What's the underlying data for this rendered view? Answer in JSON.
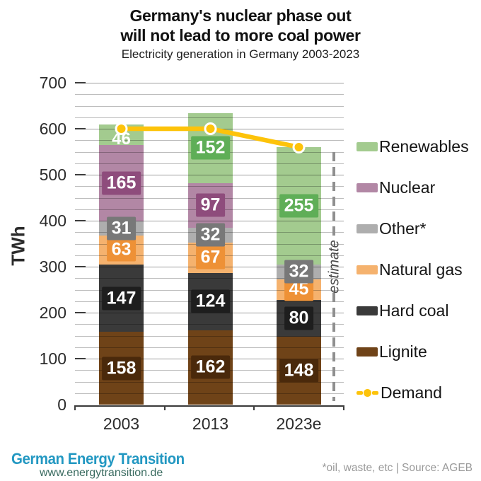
{
  "header": {
    "title1": "Germany's nuclear phase out",
    "title2": "will not lead to more coal power",
    "subtitle": "Electricity generation in Germany 2003-2023"
  },
  "y_axis_label": "TWh",
  "chart_data": {
    "type": "stacked-bar+line",
    "title": "Germany's nuclear phase out will not lead to more coal power",
    "subtitle": "Electricity generation in Germany 2003-2023",
    "ylabel": "TWh",
    "xlabel": "",
    "ylim": [
      0,
      700
    ],
    "yticks": [
      0,
      100,
      200,
      300,
      400,
      500,
      600,
      700
    ],
    "minor_grid_step": 25,
    "grid": true,
    "categories": [
      "2003",
      "2013",
      "2023e"
    ],
    "series": [
      {
        "name": "Lignite",
        "color": "#6f4318",
        "label_color": "#4a290b",
        "values": [
          158,
          162,
          148
        ],
        "boxed": [
          true,
          true,
          true
        ]
      },
      {
        "name": "Hard coal",
        "color": "#3a3a3a",
        "label_color": "#1e1e1e",
        "values": [
          147,
          124,
          80
        ],
        "boxed": [
          true,
          true,
          true
        ]
      },
      {
        "name": "Natural gas",
        "color": "#f5b26e",
        "label_color": "#ee9136",
        "values": [
          63,
          67,
          45
        ],
        "boxed": [
          true,
          true,
          true
        ]
      },
      {
        "name": "Other*",
        "color": "#aeaeae",
        "label_color": "#787878",
        "values": [
          31,
          32,
          32
        ],
        "boxed": [
          true,
          true,
          true
        ]
      },
      {
        "name": "Nuclear",
        "color": "#b287a5",
        "label_color": "#8e4c7c",
        "values": [
          165,
          97,
          0
        ],
        "boxed": [
          true,
          true,
          true
        ]
      },
      {
        "name": "Renewables",
        "color": "#a3cb8f",
        "label_color": "#5fae57",
        "values": [
          46,
          152,
          255
        ],
        "boxed": [
          false,
          true,
          true
        ]
      }
    ],
    "line_series": {
      "name": "Demand",
      "color": "#fdc30a",
      "values": [
        600,
        600,
        560
      ]
    },
    "annotation": {
      "text": "estimate",
      "applies_to": "2023e"
    },
    "legend_position": "right"
  },
  "legend": {
    "items": [
      {
        "label": "Renewables",
        "color": "#a3cb8f",
        "type": "swatch"
      },
      {
        "label": "Nuclear",
        "color": "#b287a5",
        "type": "swatch"
      },
      {
        "label": "Other*",
        "color": "#aeaeae",
        "type": "swatch"
      },
      {
        "label": "Natural gas",
        "color": "#f5b26e",
        "type": "swatch"
      },
      {
        "label": "Hard coal",
        "color": "#3a3a3a",
        "type": "swatch"
      },
      {
        "label": "Lignite",
        "color": "#6f4318",
        "type": "swatch"
      },
      {
        "label": "Demand",
        "color": "#fdc30a",
        "type": "line-dot"
      }
    ]
  },
  "footer": {
    "logo": "German Energy Transition",
    "url": "www.energytransition.de",
    "note": "*oil, waste, etc | Source: AGEB"
  }
}
